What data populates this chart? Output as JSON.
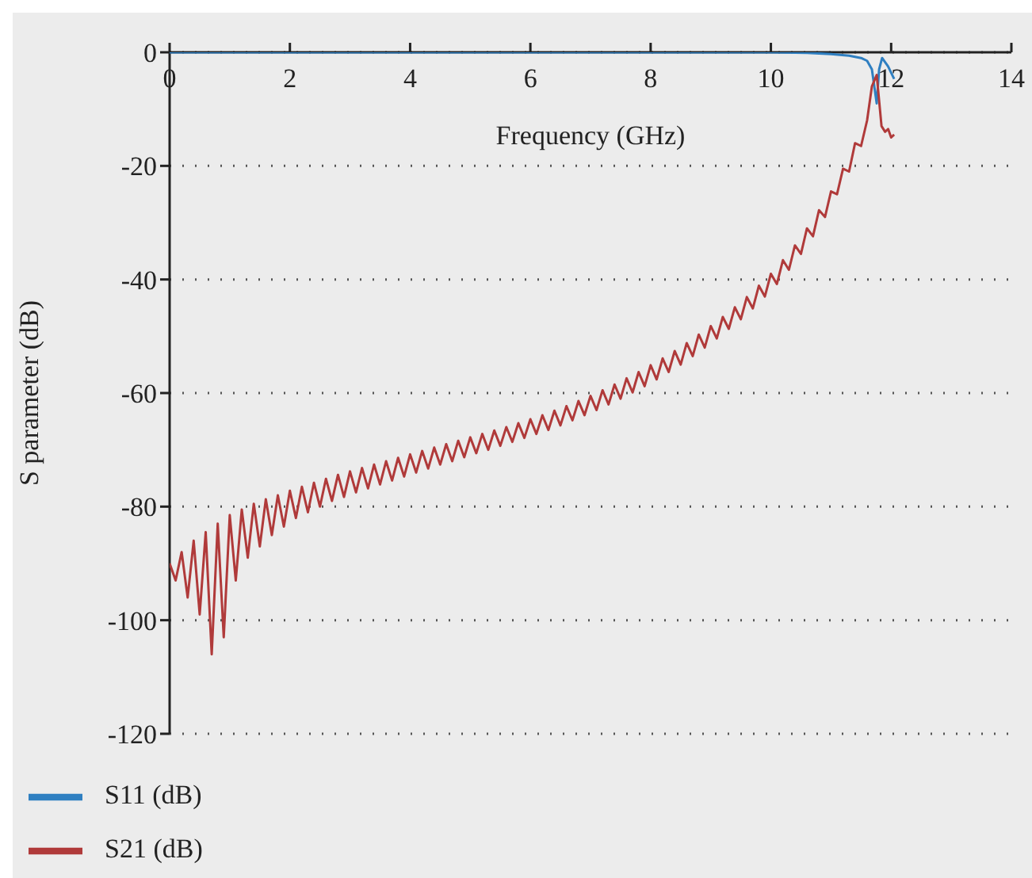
{
  "chart_data": {
    "type": "line",
    "xlabel": "Frequency (GHz)",
    "ylabel": "S parameter (dB)",
    "xlim": [
      0,
      14
    ],
    "xticks": [
      0,
      2,
      4,
      6,
      8,
      10,
      12,
      14
    ],
    "ylim": [
      -120,
      0
    ],
    "yticks": [
      -120,
      -100,
      -80,
      -60,
      -40,
      -20,
      0
    ],
    "grid": "y",
    "legend": "bottom left",
    "marker": "none",
    "line_style": "solid",
    "series": [
      {
        "name": "S11 (dB)",
        "color": "#2f7fc1",
        "x": [
          0,
          2,
          4,
          6,
          8,
          10,
          10.6,
          11,
          11.3,
          11.5,
          11.6,
          11.68,
          11.76,
          11.8,
          11.85,
          11.95,
          12.05
        ],
        "values": [
          0,
          0,
          0,
          0,
          0,
          0,
          -0.1,
          -0.3,
          -0.6,
          -1,
          -1.5,
          -3,
          -9,
          -3,
          -1,
          -2.5,
          -4.7
        ]
      },
      {
        "name": "S21 (dB)",
        "color": "#b03a3a",
        "x": [
          0,
          0.1,
          0.2,
          0.3,
          0.4,
          0.5,
          0.6,
          0.7,
          0.8,
          0.9,
          1,
          1.1,
          1.2,
          1.3,
          1.4,
          1.5,
          1.6,
          1.7,
          1.8,
          1.9,
          2,
          2.1,
          2.2,
          2.3,
          2.4,
          2.5,
          2.6,
          2.7,
          2.8,
          2.9,
          3,
          3.1,
          3.2,
          3.3,
          3.4,
          3.5,
          3.6,
          3.7,
          3.8,
          3.9,
          4,
          4.1,
          4.2,
          4.3,
          4.4,
          4.5,
          4.6,
          4.7,
          4.8,
          4.9,
          5,
          5.1,
          5.2,
          5.3,
          5.4,
          5.5,
          5.6,
          5.7,
          5.8,
          5.9,
          6,
          6.1,
          6.2,
          6.3,
          6.4,
          6.5,
          6.6,
          6.7,
          6.8,
          6.9,
          7,
          7.1,
          7.2,
          7.3,
          7.4,
          7.5,
          7.6,
          7.7,
          7.8,
          7.9,
          8,
          8.1,
          8.2,
          8.3,
          8.4,
          8.5,
          8.6,
          8.7,
          8.8,
          8.9,
          9,
          9.1,
          9.2,
          9.3,
          9.4,
          9.5,
          9.6,
          9.7,
          9.8,
          9.9,
          10,
          10.1,
          10.2,
          10.3,
          10.4,
          10.5,
          10.6,
          10.7,
          10.8,
          10.9,
          11,
          11.1,
          11.2,
          11.3,
          11.4,
          11.5,
          11.6,
          11.68,
          11.76,
          11.84,
          11.9,
          11.95,
          12,
          12.05
        ],
        "values": [
          -90,
          -93,
          -88,
          -96,
          -86,
          -99,
          -84.5,
          -106,
          -83,
          -103,
          -81.5,
          -93,
          -80.5,
          -89,
          -79.5,
          -87,
          -78.7,
          -85,
          -78,
          -83.5,
          -77.2,
          -82,
          -76.5,
          -81,
          -75.8,
          -80,
          -75.1,
          -79,
          -74.4,
          -78.3,
          -73.8,
          -77.5,
          -73.2,
          -76.8,
          -72.6,
          -76.1,
          -72,
          -75.4,
          -71.4,
          -74.7,
          -70.8,
          -74,
          -70.2,
          -73.3,
          -69.6,
          -72.6,
          -69,
          -72,
          -68.4,
          -71.3,
          -67.8,
          -70.6,
          -67.2,
          -70,
          -66.6,
          -69.3,
          -66,
          -68.6,
          -65.3,
          -67.9,
          -64.6,
          -67.2,
          -63.9,
          -66.5,
          -63.1,
          -65.7,
          -62.3,
          -64.8,
          -61.4,
          -63.9,
          -60.5,
          -63,
          -59.5,
          -62,
          -58.5,
          -61,
          -57.4,
          -59.9,
          -56.3,
          -58.8,
          -55.1,
          -57.6,
          -53.9,
          -56.3,
          -52.6,
          -55,
          -51.2,
          -53.5,
          -49.7,
          -52,
          -48.2,
          -50.4,
          -46.6,
          -48.7,
          -44.9,
          -47,
          -43.1,
          -45.1,
          -41.1,
          -43,
          -39,
          -40.8,
          -36.6,
          -38.3,
          -34,
          -35.5,
          -31,
          -32.4,
          -27.8,
          -29,
          -24.5,
          -25,
          -20.5,
          -21,
          -16,
          -16.5,
          -12,
          -6,
          -4,
          -13,
          -14,
          -13.5,
          -15,
          -14.5
        ]
      }
    ]
  }
}
